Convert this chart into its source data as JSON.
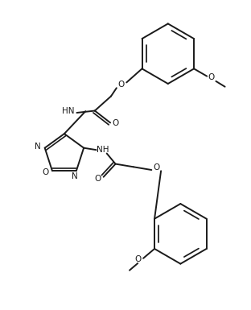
{
  "background_color": "#ffffff",
  "line_color": "#1a1a1a",
  "line_width": 1.4,
  "figsize": [
    3.12,
    3.85
  ],
  "dpi": 100,
  "xlim": [
    0,
    10
  ],
  "ylim": [
    0,
    12.3
  ]
}
